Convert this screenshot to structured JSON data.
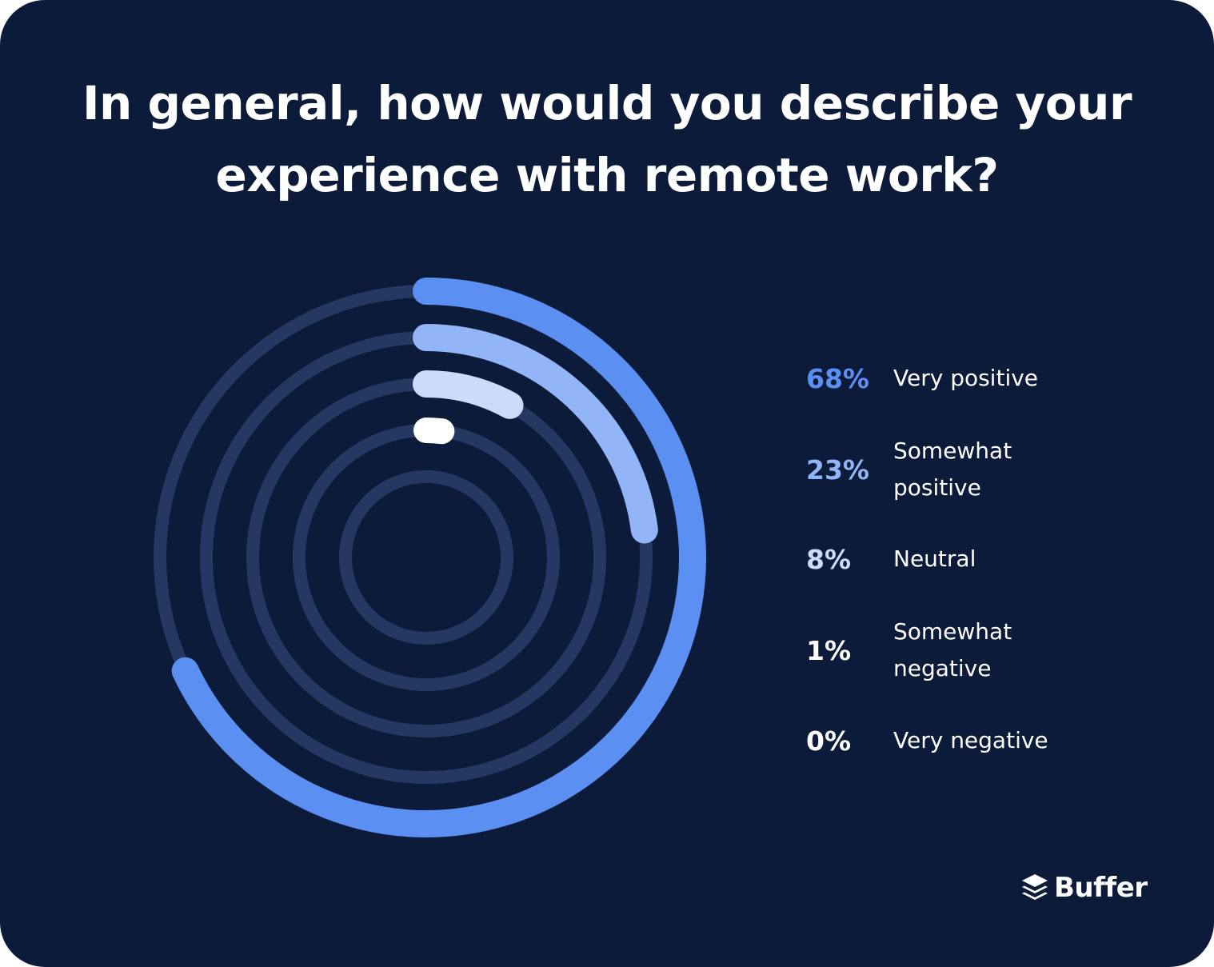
{
  "title": "In general, how would you describe your experience with remote work?",
  "brand": {
    "name": "Buffer",
    "icon": "buffer-stack-icon"
  },
  "colors": {
    "background": "#0d1b3a",
    "track": "#243862"
  },
  "chart_data": {
    "type": "radial-bar",
    "title": "In general, how would you describe your experience with remote work?",
    "unit": "%",
    "max": 100,
    "legend_position": "right",
    "categories": [
      "Very positive",
      "Somewhat positive",
      "Neutral",
      "Somewhat negative",
      "Very negative"
    ],
    "values": [
      68,
      23,
      8,
      1,
      0
    ],
    "series": [
      {
        "label": "Very positive",
        "value": 68,
        "display": "68%",
        "color": "#5b8ff2"
      },
      {
        "label": "Somewhat positive",
        "value": 23,
        "display": "23%",
        "color": "#92b5f7"
      },
      {
        "label": "Neutral",
        "value": 8,
        "display": "8%",
        "color": "#cbdcfb"
      },
      {
        "label": "Somewhat negative",
        "value": 1,
        "display": "1%",
        "color": "#ffffff"
      },
      {
        "label": "Very negative",
        "value": 0,
        "display": "0%",
        "color": "#ffffff"
      }
    ]
  }
}
